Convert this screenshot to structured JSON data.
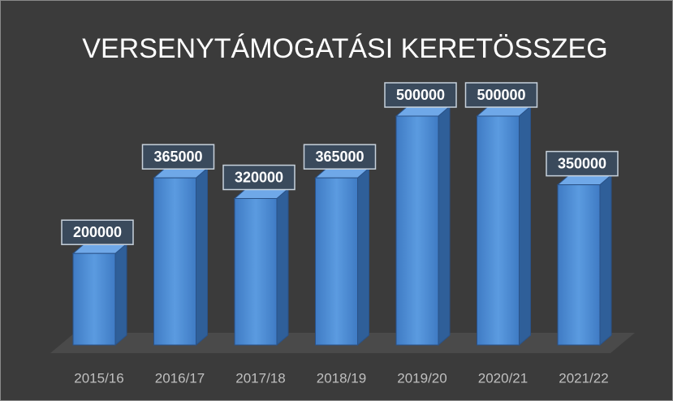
{
  "chart_data": {
    "type": "bar",
    "title": "VERSENYTÁMOGATÁSI KERETÖSSZEG",
    "categories": [
      "2015/16",
      "2016/17",
      "2017/18",
      "2018/19",
      "2019/20",
      "2020/21",
      "2021/22"
    ],
    "values": [
      200000,
      365000,
      320000,
      365000,
      500000,
      500000,
      350000
    ],
    "color": "#4f8fd6"
  }
}
